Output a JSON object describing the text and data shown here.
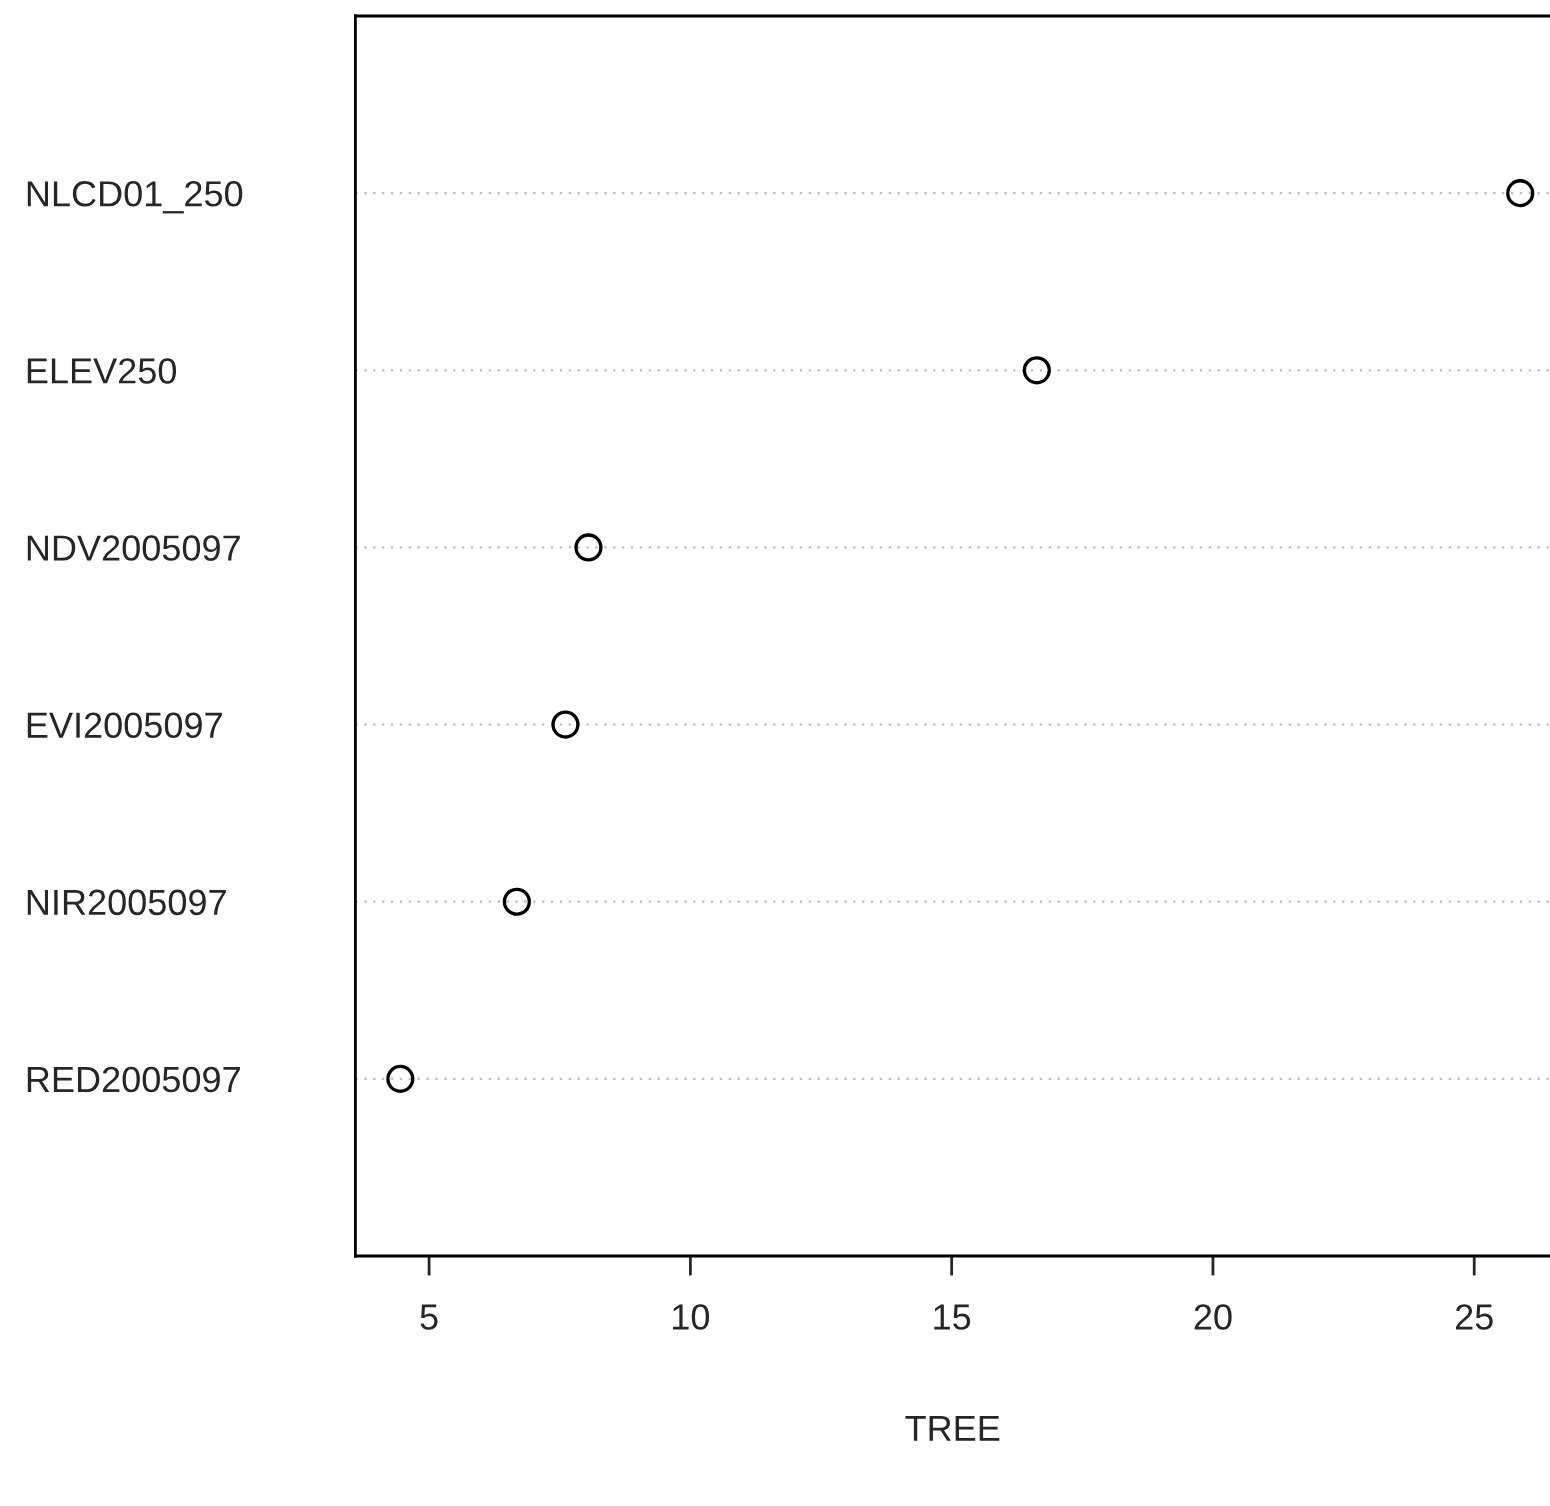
{
  "chart_data": {
    "type": "scatter",
    "orientation": "horizontal",
    "xlabel": "TREE",
    "categories": [
      "NLCD01_250",
      "ELEV250",
      "NDV2005097",
      "EVI2005097",
      "NIR2005097",
      "RED2005097"
    ],
    "series": [
      {
        "color": "#000000",
        "values": [
          25.88,
          16.63,
          8.05,
          7.61,
          6.68,
          4.45
        ]
      }
    ],
    "xlim": [
      3.59,
      26.45
    ],
    "xticks": [
      5,
      10,
      15,
      20,
      25
    ],
    "grid": "y",
    "marker": "circle"
  }
}
